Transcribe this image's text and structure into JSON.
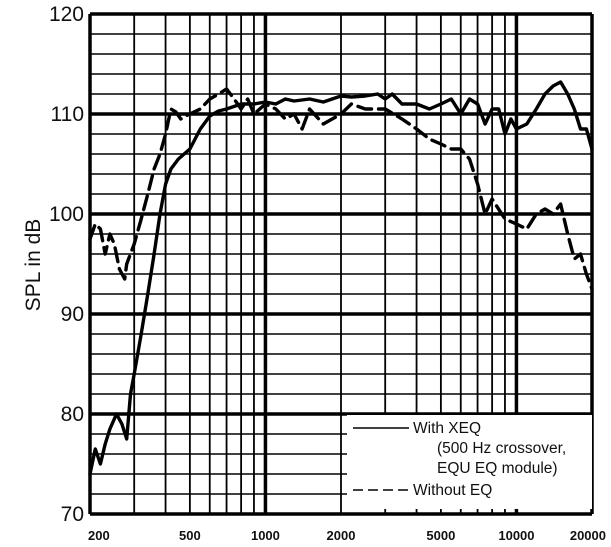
{
  "chart_data": {
    "type": "line",
    "title": "",
    "xlabel": "",
    "ylabel": "SPL in dB",
    "x_scale": "log",
    "xlim": [
      200,
      20000
    ],
    "ylim": [
      70,
      120
    ],
    "grid": true,
    "x_tick_labels": [
      "200",
      "500",
      "1000",
      "2000",
      "5000",
      "10000",
      "20000"
    ],
    "y_tick_labels": [
      "70",
      "80",
      "90",
      "100",
      "110",
      "120"
    ],
    "legend_position": "bottom-right",
    "legend": [
      {
        "label_lines": [
          "With XEQ",
          "(500 Hz crossover,",
          "EQU EQ module)"
        ],
        "style": "solid"
      },
      {
        "label_lines": [
          "Without EQ"
        ],
        "style": "dashed"
      }
    ],
    "series": [
      {
        "name": "With XEQ",
        "style": "solid",
        "x": [
          200,
          210,
          220,
          230,
          240,
          255,
          268,
          280,
          290,
          300,
          320,
          340,
          360,
          380,
          400,
          420,
          450,
          500,
          550,
          600,
          650,
          700,
          800,
          900,
          1000,
          1100,
          1200,
          1300,
          1500,
          1700,
          2000,
          2200,
          2500,
          2800,
          3000,
          3200,
          3500,
          4000,
          4500,
          5000,
          5500,
          6000,
          6500,
          7000,
          7500,
          8000,
          8500,
          9000,
          9500,
          10000,
          11000,
          12000,
          13000,
          14000,
          15000,
          16000,
          17000,
          18000,
          19000,
          20000
        ],
        "y": [
          74,
          76.5,
          75,
          77,
          78.5,
          80,
          79,
          77.5,
          82,
          84,
          88,
          92,
          96,
          100,
          103,
          104.5,
          105.5,
          106.5,
          108.5,
          109.8,
          110.3,
          110.5,
          111,
          111,
          111.2,
          111,
          111.5,
          111.3,
          111.5,
          111.2,
          111.8,
          111.7,
          111.8,
          112,
          111.5,
          112,
          111,
          111,
          110.5,
          111,
          111.5,
          110,
          111.5,
          111,
          109,
          110.5,
          110.5,
          108,
          109.5,
          108.5,
          109,
          110.5,
          112,
          112.8,
          113.2,
          112,
          110.5,
          108.5,
          108.5,
          106.5
        ]
      },
      {
        "name": "Without EQ",
        "style": "dashed",
        "x": [
          200,
          210,
          220,
          230,
          240,
          250,
          262,
          275,
          280,
          300,
          320,
          340,
          360,
          380,
          400,
          420,
          440,
          460,
          480,
          500,
          550,
          600,
          650,
          700,
          750,
          800,
          850,
          900,
          1000,
          1100,
          1200,
          1300,
          1400,
          1500,
          1700,
          2000,
          2200,
          2500,
          3000,
          3500,
          4000,
          4500,
          5000,
          5500,
          6000,
          6500,
          7000,
          7500,
          8000,
          9000,
          10000,
          11000,
          12000,
          13000,
          14000,
          15000,
          16000,
          17000,
          18000,
          19000,
          20000
        ],
        "y": [
          97.5,
          99,
          98.5,
          96,
          98,
          97,
          94.5,
          93.5,
          95,
          97,
          99.5,
          102,
          104.5,
          106,
          108,
          110.5,
          110.2,
          109.5,
          109.8,
          110,
          110.5,
          111.5,
          112,
          112.5,
          111.5,
          110.5,
          111.5,
          110,
          111,
          110.5,
          109.5,
          110,
          108.5,
          110.5,
          109,
          110,
          111,
          110.5,
          110.5,
          109.5,
          108.5,
          107.5,
          107,
          106.5,
          106.5,
          105.5,
          103,
          100,
          101.5,
          99.5,
          99,
          98.5,
          100,
          100.5,
          100,
          101,
          98,
          95.5,
          96,
          94,
          92.5
        ]
      }
    ]
  }
}
